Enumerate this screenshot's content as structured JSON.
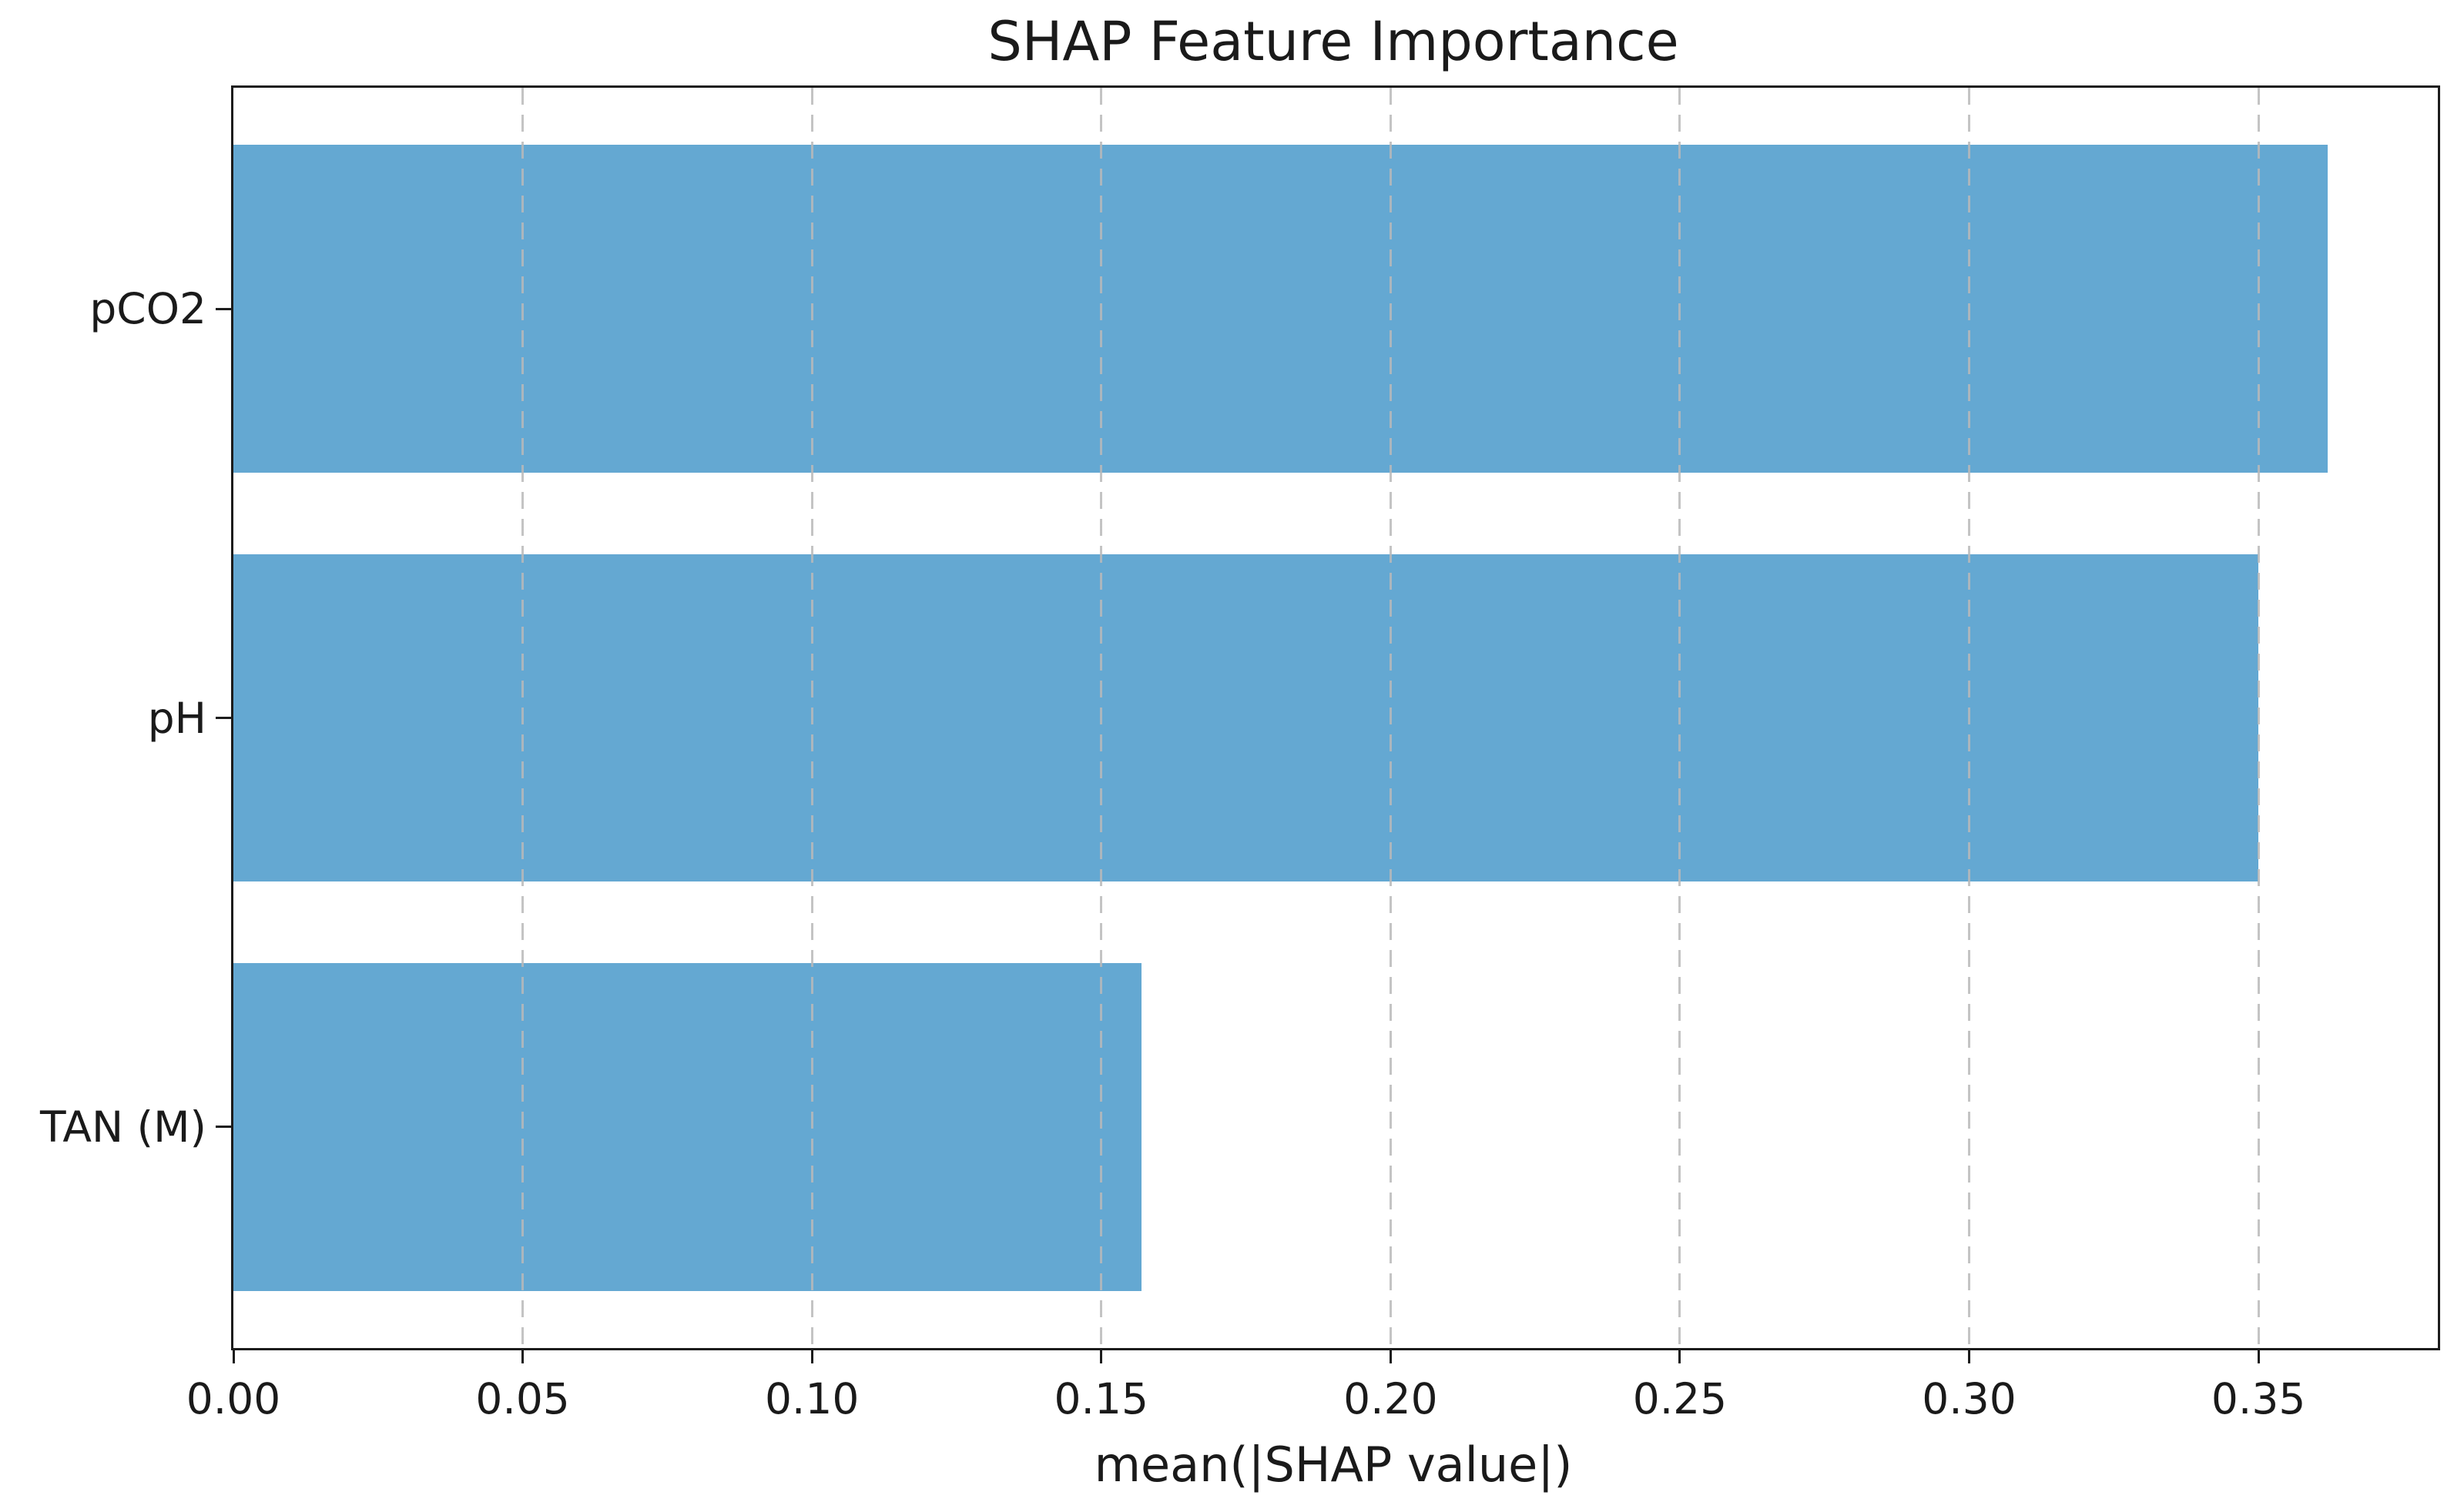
{
  "figure": {
    "background": "#ffffff"
  },
  "chart_data": {
    "type": "bar",
    "orientation": "horizontal",
    "title": "SHAP Feature Importance",
    "xlabel": "mean(|SHAP value|)",
    "ylabel": "",
    "categories": [
      "pCO2",
      "pH",
      "TAN (M)"
    ],
    "values": [
      0.362,
      0.35,
      0.157
    ],
    "series": [
      {
        "name": "mean(|SHAP value|)",
        "values": [
          0.362,
          0.35,
          0.157
        ]
      }
    ],
    "xlim": [
      0,
      0.381
    ],
    "ylim": [
      -0.54,
      2.54
    ],
    "bar_half_width": 0.4,
    "xticks": {
      "values": [
        0.0,
        0.05,
        0.1,
        0.15,
        0.2,
        0.25,
        0.3,
        0.35
      ],
      "labels": [
        "0.00",
        "0.05",
        "0.10",
        "0.15",
        "0.20",
        "0.25",
        "0.30",
        "0.35"
      ]
    },
    "grid": {
      "show": true,
      "axis": "x",
      "style": "dashed",
      "color": "#b9b9b9",
      "on_top_of_bars": true
    },
    "legend": null,
    "colors": {
      "bar_fill": "#64a8d2",
      "spine": "#1c1c1c",
      "text": "#1a1a1a",
      "background": "#ffffff"
    }
  }
}
